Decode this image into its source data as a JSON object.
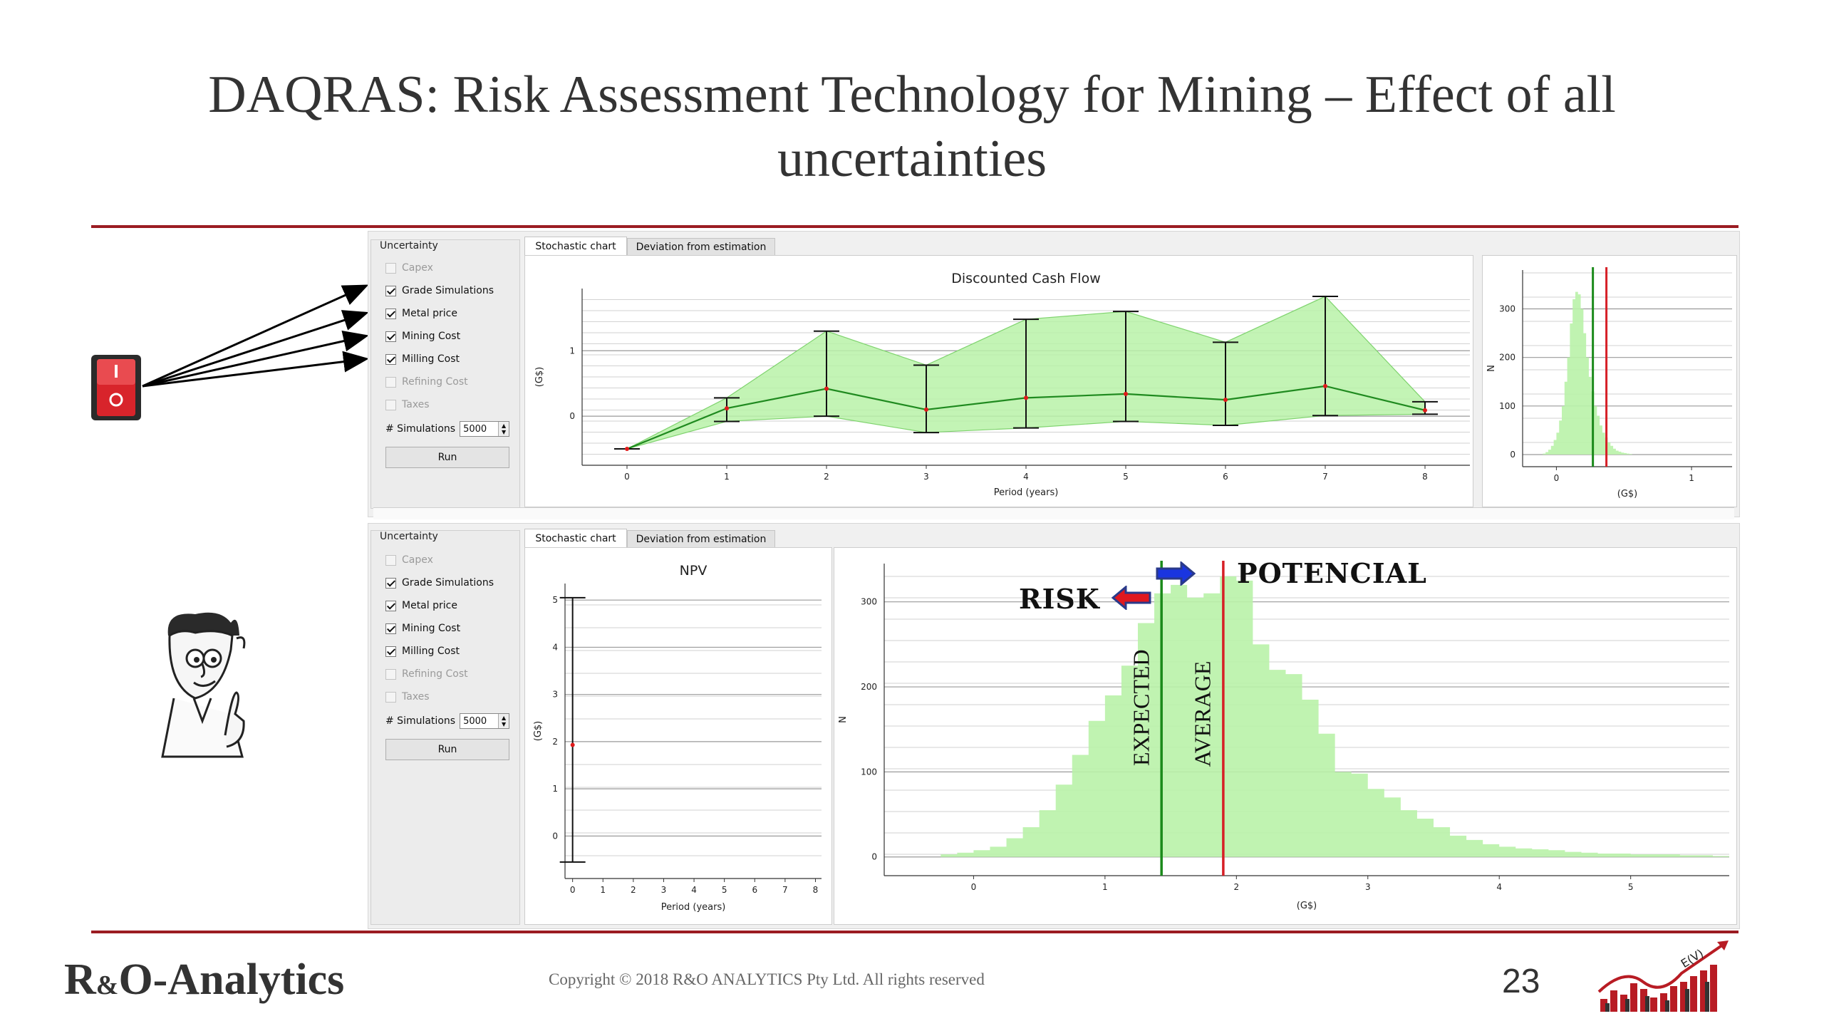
{
  "slide": {
    "title_line1": "DAQRAS: Risk Assessment Technology for Mining – Effect of all",
    "title_line2": "uncertainties"
  },
  "colors": {
    "accent_rule": "#9b1c22",
    "band_fill": "#b9f2a8",
    "mean_line": "#1f8a1f",
    "expected_line": "#1a8a1a",
    "average_line": "#d61f26"
  },
  "panels": [
    {
      "uncertainty_title": "Uncertainty",
      "options": [
        {
          "label": "Capex",
          "checked": false,
          "enabled": false
        },
        {
          "label": "Grade Simulations",
          "checked": true,
          "enabled": true
        },
        {
          "label": "Metal price",
          "checked": true,
          "enabled": true
        },
        {
          "label": "Mining Cost",
          "checked": true,
          "enabled": true
        },
        {
          "label": "Milling Cost",
          "checked": true,
          "enabled": true
        },
        {
          "label": "Refining Cost",
          "checked": false,
          "enabled": false
        },
        {
          "label": "Taxes",
          "checked": false,
          "enabled": false
        }
      ],
      "sims_label": "# Simulations",
      "sims_value": "5000",
      "run_label": "Run",
      "tabs": [
        "Stochastic chart",
        "Deviation from estimation"
      ]
    },
    {
      "uncertainty_title": "Uncertainty",
      "options": [
        {
          "label": "Capex",
          "checked": false,
          "enabled": false
        },
        {
          "label": "Grade Simulations",
          "checked": true,
          "enabled": true
        },
        {
          "label": "Metal price",
          "checked": true,
          "enabled": true
        },
        {
          "label": "Mining Cost",
          "checked": true,
          "enabled": true
        },
        {
          "label": "Milling Cost",
          "checked": true,
          "enabled": true
        },
        {
          "label": "Refining Cost",
          "checked": false,
          "enabled": false
        },
        {
          "label": "Taxes",
          "checked": false,
          "enabled": false
        }
      ],
      "sims_label": "# Simulations",
      "sims_value": "5000",
      "run_label": "Run",
      "tabs": [
        "Stochastic chart",
        "Deviation from estimation"
      ]
    }
  ],
  "annotations": {
    "risk": "RISK",
    "potencial": "POTENCIAL",
    "expected": "EXPECTED",
    "average": "AVERAGE"
  },
  "footer": {
    "brand_r": "R",
    "brand_amp": "&",
    "brand_rest": "O-Analytics",
    "copyright": "Copyright © 2018 R&O ANALYTICS Pty Ltd. All rights reserved",
    "page": "23",
    "logo_text": "E(V)"
  },
  "chart_data": [
    {
      "type": "line",
      "title": "Discounted Cash Flow",
      "xlabel": "Period (years)",
      "ylabel": "(G$)",
      "x": [
        0,
        1,
        2,
        3,
        4,
        5,
        6,
        7,
        8
      ],
      "xlim": [
        -0.45,
        8.45
      ],
      "ylim": [
        -0.75,
        1.95
      ],
      "yticks": [
        0,
        1
      ],
      "series": [
        {
          "values": [
            -0.5,
            0.12,
            0.42,
            0.1,
            0.28,
            0.34,
            0.25,
            0.46,
            0.09
          ]
        }
      ],
      "band_upper": [
        -0.5,
        0.28,
        1.3,
        0.78,
        1.48,
        1.6,
        1.13,
        1.83,
        0.22
      ],
      "band_lower": [
        -0.5,
        -0.08,
        0.0,
        -0.25,
        -0.18,
        -0.08,
        -0.14,
        0.01,
        0.03
      ],
      "error_upper": [
        -0.5,
        0.28,
        1.3,
        0.78,
        1.48,
        1.6,
        1.13,
        1.83,
        0.22
      ],
      "error_lower": [
        -0.5,
        -0.08,
        0.0,
        -0.25,
        -0.18,
        -0.08,
        -0.14,
        0.01,
        0.03
      ],
      "grid": true
    },
    {
      "type": "bar",
      "xlabel": "(G$)",
      "ylabel": "N",
      "xlim": [
        -0.25,
        1.3
      ],
      "ylim": [
        -25,
        380
      ],
      "xticks": [
        0,
        1
      ],
      "yticks": [
        0,
        100,
        200,
        300
      ],
      "bin_start": -0.1,
      "bin_width": 0.02,
      "values": [
        2,
        5,
        10,
        18,
        30,
        45,
        70,
        100,
        150,
        200,
        270,
        320,
        335,
        330,
        300,
        250,
        200,
        160,
        130,
        100,
        80,
        60,
        45,
        35,
        25,
        18,
        12,
        8,
        6,
        4,
        3,
        2,
        1
      ],
      "vlines": [
        {
          "x": 0.27,
          "color": "#1a8a1a"
        },
        {
          "x": 0.37,
          "color": "#d61f26"
        }
      ],
      "grid": true
    },
    {
      "type": "line",
      "title": "NPV",
      "xlabel": "Period (years)",
      "ylabel": "(G$)",
      "x": [
        0
      ],
      "xlim": [
        -0.25,
        8.2
      ],
      "xticks": [
        0,
        1,
        2,
        3,
        4,
        5,
        6,
        7,
        8
      ],
      "ylim": [
        -0.9,
        5.35
      ],
      "yticks": [
        0,
        1,
        2,
        3,
        4,
        5
      ],
      "series": [
        {
          "values": [
            1.93
          ]
        }
      ],
      "error_upper": [
        5.05
      ],
      "error_lower": [
        -0.55
      ],
      "grid": true
    },
    {
      "type": "bar",
      "xlabel": "(G$)",
      "ylabel": "N",
      "xlim": [
        -0.68,
        5.75
      ],
      "ylim": [
        -22,
        345
      ],
      "xticks": [
        0,
        1,
        2,
        3,
        4,
        5
      ],
      "yticks": [
        0,
        100,
        200,
        300
      ],
      "bin_start": -0.25,
      "bin_width": 0.125,
      "values": [
        3,
        5,
        8,
        12,
        22,
        35,
        55,
        85,
        120,
        160,
        190,
        225,
        275,
        310,
        320,
        305,
        310,
        330,
        325,
        250,
        220,
        215,
        185,
        145,
        100,
        98,
        80,
        70,
        55,
        45,
        35,
        25,
        20,
        15,
        12,
        10,
        9,
        8,
        6,
        5,
        4,
        4,
        3,
        3,
        3,
        2,
        2,
        1
      ],
      "vlines": [
        {
          "x": 1.43,
          "color": "#1a8a1a"
        },
        {
          "x": 1.9,
          "color": "#d61f26"
        }
      ],
      "grid": true
    }
  ]
}
